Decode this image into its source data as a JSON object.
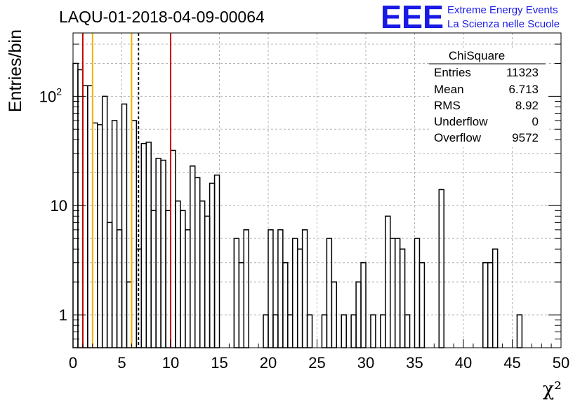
{
  "title": "LAQU-01-2018-04-09-00064",
  "logo": {
    "text": "EEE",
    "line1": "Extreme Energy Events",
    "line2": "La Scienza nelle Scuole",
    "color": "#1a1ae6"
  },
  "stats": {
    "name": "ChiSquare",
    "rows": [
      {
        "label": "Entries",
        "value": "11323"
      },
      {
        "label": "Mean",
        "value": "6.713"
      },
      {
        "label": "RMS",
        "value": "8.92"
      },
      {
        "label": "Underflow",
        "value": "0"
      },
      {
        "label": "Overflow",
        "value": "9572"
      }
    ]
  },
  "chart_data": {
    "type": "histogram",
    "xlabel": "χ²",
    "ylabel": "Entries/bin",
    "xlim": [
      0,
      50
    ],
    "ylim": [
      0.5,
      380
    ],
    "y_scale": "log",
    "grid": true,
    "bin_width": 0.5,
    "x_ticks": [
      "0",
      "5",
      "10",
      "15",
      "20",
      "25",
      "30",
      "35",
      "40",
      "45",
      "50"
    ],
    "y_ticks": [
      {
        "value": 1,
        "label": "1"
      },
      {
        "value": 10,
        "label": "10"
      },
      {
        "value": 100,
        "label": "10²"
      }
    ],
    "values": [
      200,
      175,
      125,
      125,
      57,
      55,
      100,
      7,
      60,
      6,
      85,
      2,
      60,
      4,
      37,
      38,
      9,
      27,
      26,
      9,
      32,
      11,
      9,
      6,
      23,
      18,
      11,
      8,
      16,
      19,
      0,
      0,
      0,
      5,
      3,
      6,
      0,
      0,
      0,
      1,
      6,
      1,
      6,
      3,
      1,
      5,
      4,
      6,
      1,
      0,
      0,
      1,
      5,
      2,
      0,
      1,
      0,
      1,
      2,
      3,
      0,
      1,
      0,
      1,
      8,
      5,
      5,
      4,
      1,
      0,
      5,
      3,
      0,
      0,
      0,
      14,
      0,
      0,
      0,
      0,
      0,
      0,
      0,
      0,
      3,
      3,
      4,
      0,
      0,
      0,
      0,
      1,
      0,
      0,
      0,
      0,
      0,
      0,
      0,
      0
    ],
    "vertical_lines": [
      {
        "x": 1,
        "color": "#cc0000",
        "style": "solid"
      },
      {
        "x": 2,
        "color": "#f0b400",
        "style": "solid"
      },
      {
        "x": 6,
        "color": "#f0b400",
        "style": "solid"
      },
      {
        "x": 6.713,
        "color": "#000000",
        "style": "dashed"
      },
      {
        "x": 10,
        "color": "#cc0000",
        "style": "solid"
      }
    ]
  }
}
